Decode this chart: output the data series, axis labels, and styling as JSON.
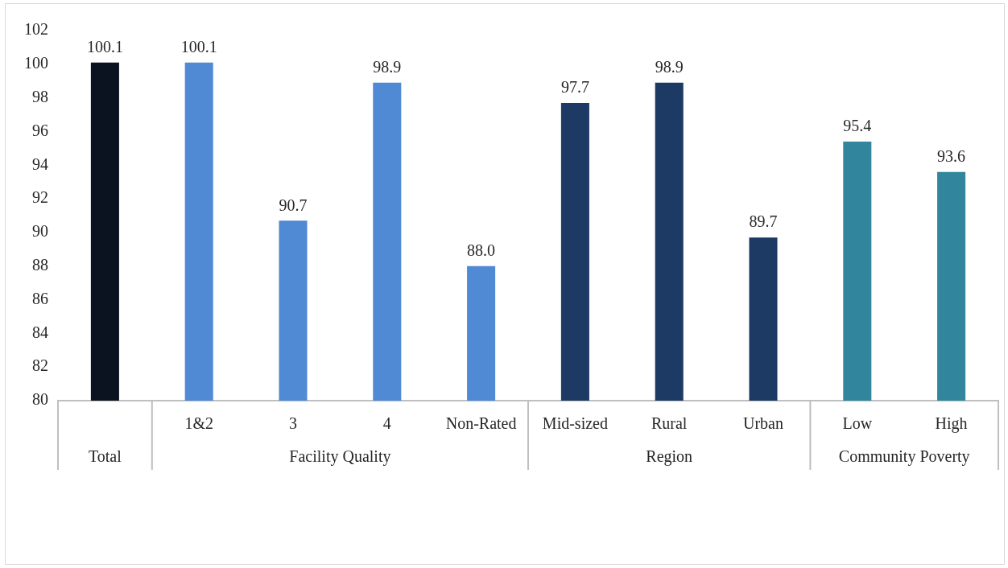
{
  "chart_data": {
    "type": "bar",
    "categories": [
      null,
      "1&2",
      "3",
      "4",
      "Non-Rated",
      "Mid-sized",
      "Rural",
      "Urban",
      "Low",
      "High"
    ],
    "values": [
      100.1,
      100.1,
      90.7,
      98.9,
      88.0,
      97.7,
      98.9,
      89.7,
      95.4,
      93.6
    ],
    "value_labels": [
      "100.1",
      "100.1",
      "90.7",
      "98.9",
      "88.0",
      "97.7",
      "98.9",
      "89.7",
      "95.4",
      "93.6"
    ],
    "colors": [
      "#0b1220",
      "#5089d4",
      "#5089d4",
      "#5089d4",
      "#5089d4",
      "#1d3a64",
      "#1d3a64",
      "#1d3a64",
      "#31859c",
      "#31859c"
    ],
    "annotations": [
      "Total",
      "Facility Quality",
      "Region",
      "Community Poverty"
    ],
    "ylim": [
      80,
      102
    ],
    "yticks": [
      80,
      82,
      84,
      86,
      88,
      90,
      92,
      94,
      96,
      98,
      100,
      102
    ],
    "grid": false,
    "legend": false
  }
}
